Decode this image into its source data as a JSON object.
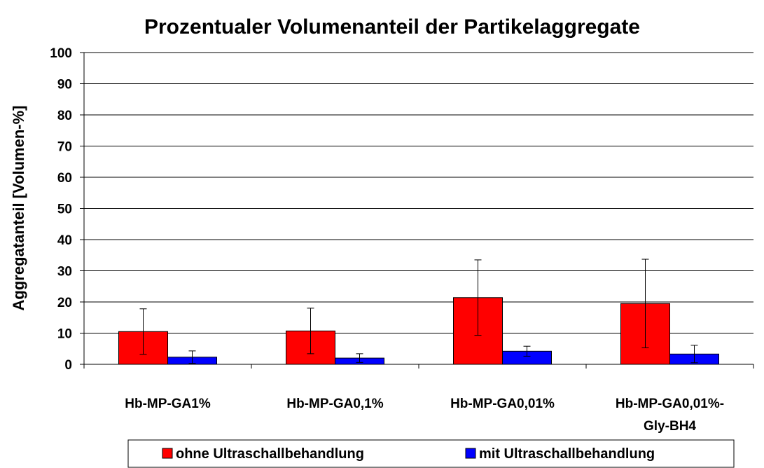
{
  "chart_data": {
    "type": "bar",
    "title": "Prozentualer Volumenanteil der Partikelaggregate",
    "ylabel": "Aggregatanteil [Volumen-%]",
    "categories": [
      "Hb-MP-GA1%",
      "Hb-MP-GA0,1%",
      "Hb-MP-GA0,01%",
      [
        "Hb-MP-GA0,01%-",
        "Gly-BH4"
      ]
    ],
    "series": [
      {
        "name": "ohne Ultraschallbehandlung",
        "color": "#ff0000",
        "values": [
          10.5,
          10.7,
          21.4,
          19.5
        ],
        "errors": [
          7.3,
          7.3,
          12.1,
          14.2
        ]
      },
      {
        "name": "mit Ultraschallbehandlung",
        "color": "#0000ff",
        "values": [
          2.3,
          2.0,
          4.2,
          3.3
        ],
        "errors": [
          2.0,
          1.4,
          1.6,
          2.8
        ]
      }
    ],
    "ylim": [
      0,
      100
    ],
    "yticks": [
      0,
      10,
      20,
      30,
      40,
      50,
      60,
      70,
      80,
      90,
      100
    ],
    "grid": true,
    "legend": "bottom"
  }
}
